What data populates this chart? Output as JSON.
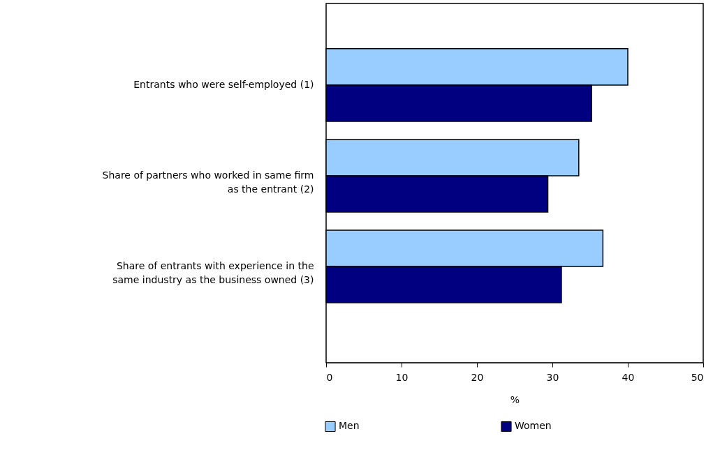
{
  "chart_data": {
    "type": "bar",
    "orientation": "horizontal",
    "categories": [
      "Entrants who were self-employed (1)",
      "Share of partners who worked in same firm as the entrant (2)",
      "Share of entrants with experience in the same industry as the business owned (3)"
    ],
    "series": [
      {
        "name": "Men",
        "color": "#99ccff",
        "values": [
          40.0,
          33.5,
          36.7
        ]
      },
      {
        "name": "Women",
        "color": "#000080",
        "values": [
          35.2,
          29.4,
          31.2
        ]
      }
    ],
    "xlabel": "%",
    "xlim": [
      0,
      50
    ],
    "xticks": [
      0,
      10,
      20,
      30,
      40,
      50
    ],
    "grid": false,
    "legend": "bottom"
  }
}
